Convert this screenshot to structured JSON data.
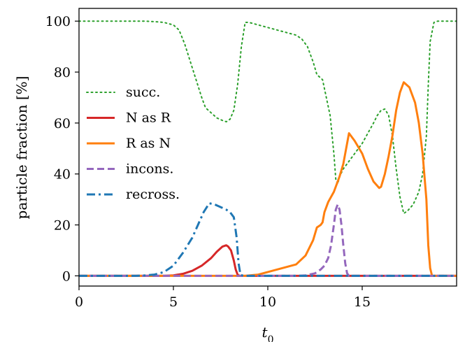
{
  "chart_data": {
    "type": "line",
    "title": "",
    "xlabel": "t_0",
    "xlabel_main": "t",
    "xlabel_sub": "0",
    "ylabel": "particle fraction [%]",
    "xlim": [
      0,
      20
    ],
    "ylim": [
      -4,
      105
    ],
    "xticks": [
      0,
      5,
      10,
      15
    ],
    "yticks": [
      0,
      20,
      40,
      60,
      80,
      100
    ],
    "xtick_labels": [
      "0",
      "5",
      "10",
      "15"
    ],
    "ytick_labels": [
      "0",
      "20",
      "40",
      "60",
      "80",
      "100"
    ],
    "grid": false,
    "legend_position": "center-left",
    "series": [
      {
        "name": "succ.",
        "color": "#2ca02c",
        "dash": "dotted",
        "x": [
          0,
          1,
          2,
          3,
          3.5,
          4.0,
          4.5,
          5.0,
          5.3,
          5.6,
          5.9,
          6.2,
          6.5,
          6.7,
          7.0,
          7.3,
          7.6,
          7.8,
          8.0,
          8.2,
          8.4,
          8.6,
          8.8,
          9.0,
          9.5,
          10.0,
          10.5,
          11.0,
          11.5,
          11.8,
          12.1,
          12.4,
          12.6,
          12.9,
          13.1,
          13.3,
          13.5,
          13.6,
          13.7,
          13.8,
          14.0,
          14.3,
          14.6,
          15.0,
          15.3,
          15.6,
          15.8,
          16.0,
          16.2,
          16.4,
          16.6,
          16.8,
          17.0,
          17.2,
          17.4,
          17.7,
          18.0,
          18.2,
          18.4,
          18.5,
          18.6,
          18.8,
          19.0,
          20
        ],
        "y": [
          100,
          100,
          100,
          100,
          100,
          99.8,
          99.5,
          98.5,
          96.5,
          91,
          84,
          77,
          70,
          66,
          64,
          62,
          61,
          60.5,
          61.5,
          65,
          75,
          90,
          99.5,
          99.5,
          98.5,
          97.5,
          96.5,
          95.5,
          94.5,
          93,
          90,
          84,
          79,
          77,
          70,
          63,
          48,
          38,
          36,
          39,
          42,
          45,
          48,
          52,
          56,
          60,
          63,
          65,
          65.5,
          63,
          55,
          42,
          31,
          24.5,
          25.5,
          28,
          33,
          40,
          55,
          75,
          92,
          99.5,
          100,
          100
        ]
      },
      {
        "name": "N as R",
        "color": "#d62728",
        "dash": "solid",
        "x": [
          0,
          3,
          4,
          4.5,
          5.0,
          5.5,
          6.0,
          6.5,
          7.0,
          7.3,
          7.6,
          7.8,
          7.9,
          8.05,
          8.2,
          8.3,
          8.4,
          8.5,
          20
        ],
        "y": [
          0,
          0,
          0,
          0,
          0.2,
          0.8,
          2,
          4,
          7,
          9.5,
          11.5,
          12,
          11.5,
          10,
          6,
          2.5,
          0.5,
          0,
          0
        ]
      },
      {
        "name": "R as N",
        "color": "#ff7f0e",
        "dash": "solid",
        "x": [
          0,
          8.8,
          9.5,
          10,
          10.5,
          11.0,
          11.5,
          12.0,
          12.4,
          12.6,
          12.8,
          12.9,
          13.0,
          13.2,
          13.5,
          13.8,
          14.0,
          14.1,
          14.2,
          14.3,
          14.6,
          15.0,
          15.3,
          15.6,
          15.9,
          16.0,
          16.2,
          16.4,
          16.6,
          16.8,
          17.0,
          17.2,
          17.5,
          17.8,
          18.0,
          18.2,
          18.4,
          18.5,
          18.6,
          18.7,
          20
        ],
        "y": [
          0,
          0,
          0.5,
          1.5,
          2.5,
          3.5,
          4.5,
          8,
          14,
          19,
          20,
          21,
          25,
          29,
          33,
          39,
          44,
          48,
          52,
          56,
          53,
          48,
          42,
          37,
          34.5,
          35,
          40,
          47,
          55,
          65,
          72,
          76,
          74,
          68,
          60,
          48,
          30,
          12,
          3,
          0,
          0
        ]
      },
      {
        "name": "incons.",
        "color": "#9467bd",
        "dash": "dashed",
        "x": [
          0,
          11.5,
          12.0,
          12.5,
          12.8,
          13.0,
          13.2,
          13.35,
          13.5,
          13.6,
          13.7,
          13.8,
          13.9,
          14.0,
          14.1,
          14.2,
          14.3,
          20
        ],
        "y": [
          0,
          0,
          0.2,
          1,
          2.5,
          4,
          7,
          12,
          20,
          26,
          28,
          26,
          20,
          12,
          5,
          1,
          0,
          0
        ]
      },
      {
        "name": "recross.",
        "color": "#1f77b4",
        "dash": "dashdot",
        "x": [
          0,
          3.0,
          3.5,
          4.0,
          4.5,
          5.0,
          5.5,
          6.0,
          6.3,
          6.6,
          6.9,
          7.2,
          7.5,
          7.8,
          8.0,
          8.2,
          8.35,
          8.45,
          8.55,
          8.7,
          20
        ],
        "y": [
          0,
          0,
          0.2,
          0.5,
          1.5,
          4,
          9,
          15,
          20,
          25,
          28.5,
          28,
          27,
          26,
          25,
          23,
          15,
          5,
          0.5,
          0,
          0
        ]
      }
    ]
  }
}
